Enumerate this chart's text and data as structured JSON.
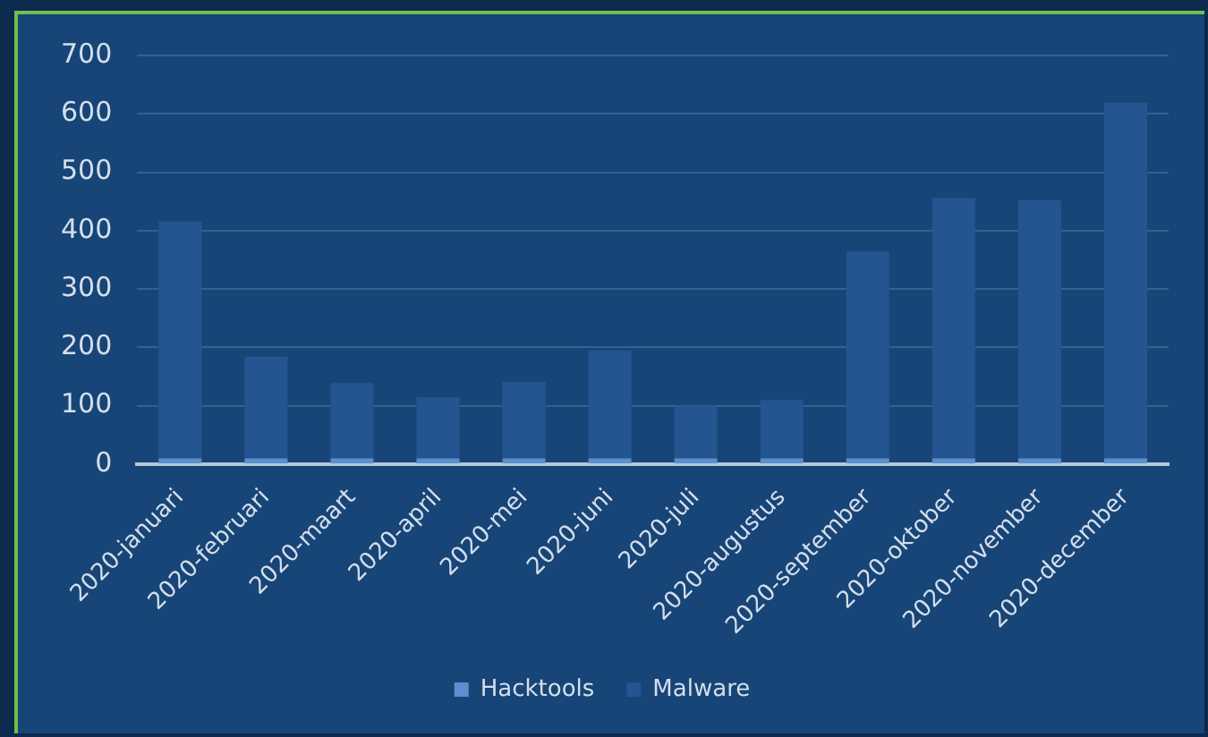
{
  "chart_data": {
    "type": "bar",
    "stacked": true,
    "categories": [
      "2020-januari",
      "2020-februari",
      "2020-maart",
      "2020-april",
      "2020-mei",
      "2020-juni",
      "2020-juli",
      "2020-augustus",
      "2020-september",
      "2020-oktober",
      "2020-november",
      "2020-december"
    ],
    "series": [
      {
        "name": "Hacktools",
        "color": "#5b8fd0",
        "values": [
          10,
          10,
          10,
          10,
          10,
          10,
          10,
          10,
          10,
          10,
          10,
          10
        ]
      },
      {
        "name": "Malware",
        "color": "#245590",
        "values": [
          406,
          174,
          129,
          105,
          131,
          185,
          90,
          100,
          354,
          446,
          442,
          609
        ]
      }
    ],
    "ylim": [
      0,
      700
    ],
    "yticks": [
      0,
      100,
      200,
      300,
      400,
      500,
      600,
      700
    ],
    "grid": "y",
    "legend": "bottom"
  }
}
